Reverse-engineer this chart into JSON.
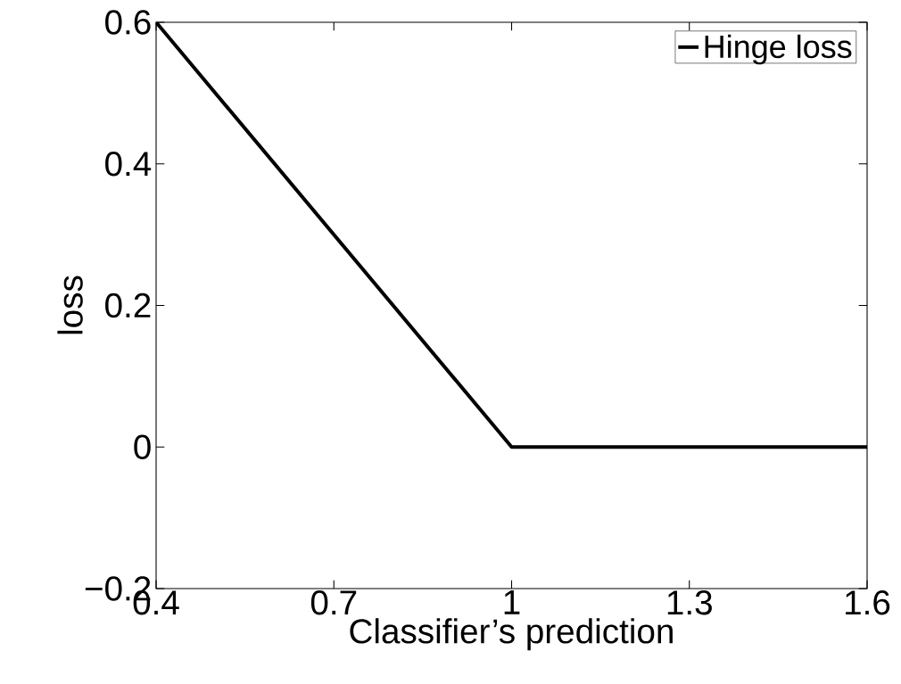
{
  "chart_data": {
    "type": "line",
    "xlabel": "Classifier’s prediction",
    "ylabel": "loss",
    "x": [
      0.4,
      1,
      1.6
    ],
    "series": [
      {
        "name": "Hinge loss",
        "color": "#000000",
        "values": [
          0.6,
          0,
          0
        ]
      }
    ],
    "xlim": [
      0.4,
      1.6
    ],
    "xticks": [
      0.4,
      0.7,
      1,
      1.3,
      1.6
    ],
    "ylim": [
      -0.2,
      0.6
    ],
    "yticks": [
      {
        "value": -0.2,
        "label": "−0.2"
      },
      0,
      0.2,
      0.4,
      0.6
    ],
    "legend": "top right",
    "grid": false,
    "marker": "none",
    "line_style": "solid"
  }
}
